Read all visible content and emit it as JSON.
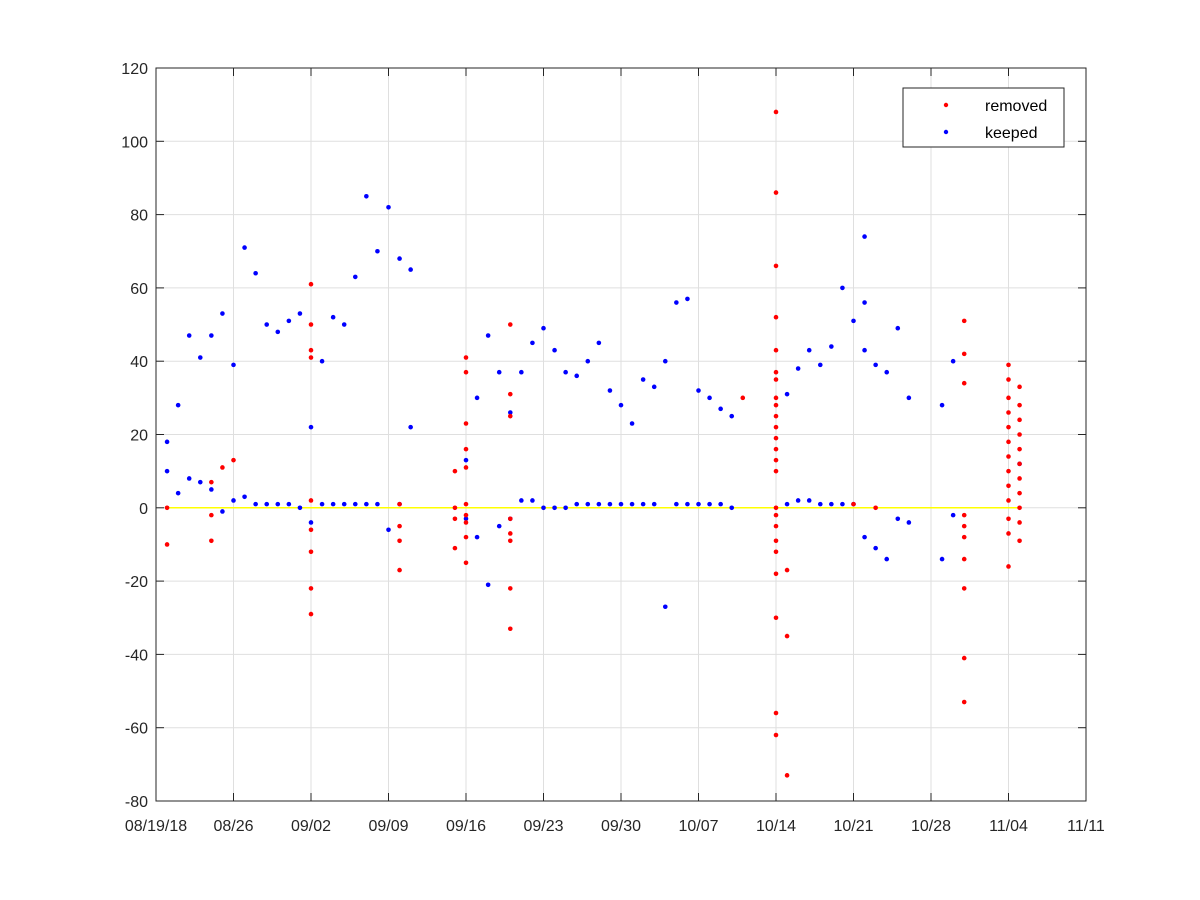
{
  "chart_data": {
    "type": "scatter",
    "title": "",
    "xlabel": "",
    "ylabel": "",
    "x_is_date": true,
    "xlim": [
      "2018-08-19",
      "2018-11-11"
    ],
    "ylim": [
      -80,
      120
    ],
    "x_ticks": [
      {
        "date": "2018-08-19",
        "label": "08/19/18"
      },
      {
        "date": "2018-08-26",
        "label": "08/26"
      },
      {
        "date": "2018-09-02",
        "label": "09/02"
      },
      {
        "date": "2018-09-09",
        "label": "09/09"
      },
      {
        "date": "2018-09-16",
        "label": "09/16"
      },
      {
        "date": "2018-09-23",
        "label": "09/23"
      },
      {
        "date": "2018-09-30",
        "label": "09/30"
      },
      {
        "date": "2018-10-07",
        "label": "10/07"
      },
      {
        "date": "2018-10-14",
        "label": "10/14"
      },
      {
        "date": "2018-10-21",
        "label": "10/21"
      },
      {
        "date": "2018-10-28",
        "label": "10/28"
      },
      {
        "date": "2018-11-04",
        "label": "11/04"
      },
      {
        "date": "2018-11-11",
        "label": "11/11"
      }
    ],
    "y_ticks": [
      -80,
      -60,
      -40,
      -20,
      0,
      20,
      40,
      60,
      80,
      100,
      120
    ],
    "grid": true,
    "legend_position": "top-right",
    "reference_line": {
      "y": 0,
      "color": "#ffff00"
    },
    "series": [
      {
        "name": "removed",
        "color": "#ff0000",
        "points": [
          [
            "2018-08-20",
            -10
          ],
          [
            "2018-08-20",
            0
          ],
          [
            "2018-08-24",
            7
          ],
          [
            "2018-08-24",
            -2
          ],
          [
            "2018-08-24",
            -9
          ],
          [
            "2018-08-25",
            11
          ],
          [
            "2018-08-26",
            13
          ],
          [
            "2018-09-02",
            61
          ],
          [
            "2018-09-02",
            50
          ],
          [
            "2018-09-02",
            43
          ],
          [
            "2018-09-02",
            41
          ],
          [
            "2018-09-02",
            2
          ],
          [
            "2018-09-02",
            -6
          ],
          [
            "2018-09-02",
            -12
          ],
          [
            "2018-09-02",
            -22
          ],
          [
            "2018-09-02",
            -29
          ],
          [
            "2018-09-10",
            -5
          ],
          [
            "2018-09-10",
            -9
          ],
          [
            "2018-09-10",
            -17
          ],
          [
            "2018-09-10",
            1
          ],
          [
            "2018-09-15",
            10
          ],
          [
            "2018-09-15",
            0
          ],
          [
            "2018-09-15",
            -3
          ],
          [
            "2018-09-15",
            -11
          ],
          [
            "2018-09-16",
            41
          ],
          [
            "2018-09-16",
            37
          ],
          [
            "2018-09-16",
            23
          ],
          [
            "2018-09-16",
            16
          ],
          [
            "2018-09-16",
            11
          ],
          [
            "2018-09-16",
            1
          ],
          [
            "2018-09-16",
            -2
          ],
          [
            "2018-09-16",
            -4
          ],
          [
            "2018-09-16",
            -8
          ],
          [
            "2018-09-16",
            -15
          ],
          [
            "2018-09-20",
            50
          ],
          [
            "2018-09-20",
            31
          ],
          [
            "2018-09-20",
            25
          ],
          [
            "2018-09-20",
            -3
          ],
          [
            "2018-09-20",
            -9
          ],
          [
            "2018-09-20",
            -22
          ],
          [
            "2018-09-20",
            -33
          ],
          [
            "2018-09-20",
            -7
          ],
          [
            "2018-10-11",
            30
          ],
          [
            "2018-10-14",
            108
          ],
          [
            "2018-10-14",
            86
          ],
          [
            "2018-10-14",
            66
          ],
          [
            "2018-10-14",
            52
          ],
          [
            "2018-10-14",
            43
          ],
          [
            "2018-10-14",
            37
          ],
          [
            "2018-10-14",
            35
          ],
          [
            "2018-10-14",
            30
          ],
          [
            "2018-10-14",
            28
          ],
          [
            "2018-10-14",
            25
          ],
          [
            "2018-10-14",
            22
          ],
          [
            "2018-10-14",
            19
          ],
          [
            "2018-10-14",
            16
          ],
          [
            "2018-10-14",
            13
          ],
          [
            "2018-10-14",
            10
          ],
          [
            "2018-10-14",
            0
          ],
          [
            "2018-10-14",
            -2
          ],
          [
            "2018-10-14",
            -5
          ],
          [
            "2018-10-14",
            -9
          ],
          [
            "2018-10-14",
            -12
          ],
          [
            "2018-10-14",
            -18
          ],
          [
            "2018-10-14",
            -30
          ],
          [
            "2018-10-14",
            -56
          ],
          [
            "2018-10-14",
            -62
          ],
          [
            "2018-10-15",
            -17
          ],
          [
            "2018-10-15",
            -35
          ],
          [
            "2018-10-15",
            -73
          ],
          [
            "2018-10-21",
            1
          ],
          [
            "2018-10-23",
            0
          ],
          [
            "2018-10-31",
            51
          ],
          [
            "2018-10-31",
            42
          ],
          [
            "2018-10-31",
            34
          ],
          [
            "2018-10-31",
            -2
          ],
          [
            "2018-10-31",
            -5
          ],
          [
            "2018-10-31",
            -8
          ],
          [
            "2018-10-31",
            -14
          ],
          [
            "2018-10-31",
            -22
          ],
          [
            "2018-10-31",
            -41
          ],
          [
            "2018-10-31",
            -53
          ],
          [
            "2018-11-04",
            39
          ],
          [
            "2018-11-04",
            35
          ],
          [
            "2018-11-04",
            30
          ],
          [
            "2018-11-04",
            26
          ],
          [
            "2018-11-04",
            22
          ],
          [
            "2018-11-04",
            18
          ],
          [
            "2018-11-04",
            14
          ],
          [
            "2018-11-04",
            10
          ],
          [
            "2018-11-04",
            6
          ],
          [
            "2018-11-04",
            2
          ],
          [
            "2018-11-04",
            -3
          ],
          [
            "2018-11-04",
            -7
          ],
          [
            "2018-11-04",
            -16
          ],
          [
            "2018-11-05",
            33
          ],
          [
            "2018-11-05",
            28
          ],
          [
            "2018-11-05",
            24
          ],
          [
            "2018-11-05",
            20
          ],
          [
            "2018-11-05",
            16
          ],
          [
            "2018-11-05",
            12
          ],
          [
            "2018-11-05",
            8
          ],
          [
            "2018-11-05",
            4
          ],
          [
            "2018-11-05",
            0
          ],
          [
            "2018-11-05",
            -4
          ],
          [
            "2018-11-05",
            -9
          ]
        ]
      },
      {
        "name": "keeped",
        "color": "#0000ff",
        "points": [
          [
            "2018-08-20",
            18
          ],
          [
            "2018-08-20",
            10
          ],
          [
            "2018-08-21",
            28
          ],
          [
            "2018-08-21",
            4
          ],
          [
            "2018-08-22",
            47
          ],
          [
            "2018-08-22",
            8
          ],
          [
            "2018-08-23",
            41
          ],
          [
            "2018-08-23",
            7
          ],
          [
            "2018-08-24",
            47
          ],
          [
            "2018-08-24",
            5
          ],
          [
            "2018-08-25",
            53
          ],
          [
            "2018-08-25",
            -1
          ],
          [
            "2018-08-26",
            39
          ],
          [
            "2018-08-26",
            2
          ],
          [
            "2018-08-27",
            71
          ],
          [
            "2018-08-27",
            3
          ],
          [
            "2018-08-28",
            64
          ],
          [
            "2018-08-28",
            1
          ],
          [
            "2018-08-29",
            50
          ],
          [
            "2018-08-29",
            1
          ],
          [
            "2018-08-30",
            48
          ],
          [
            "2018-08-30",
            1
          ],
          [
            "2018-08-31",
            51
          ],
          [
            "2018-08-31",
            1
          ],
          [
            "2018-09-01",
            53
          ],
          [
            "2018-09-01",
            0
          ],
          [
            "2018-09-02",
            22
          ],
          [
            "2018-09-02",
            -4
          ],
          [
            "2018-09-03",
            40
          ],
          [
            "2018-09-03",
            1
          ],
          [
            "2018-09-04",
            52
          ],
          [
            "2018-09-04",
            1
          ],
          [
            "2018-09-05",
            50
          ],
          [
            "2018-09-05",
            1
          ],
          [
            "2018-09-06",
            63
          ],
          [
            "2018-09-06",
            1
          ],
          [
            "2018-09-07",
            85
          ],
          [
            "2018-09-07",
            1
          ],
          [
            "2018-09-08",
            70
          ],
          [
            "2018-09-08",
            1
          ],
          [
            "2018-09-09",
            82
          ],
          [
            "2018-09-09",
            -6
          ],
          [
            "2018-09-10",
            68
          ],
          [
            "2018-09-10",
            1
          ],
          [
            "2018-09-11",
            65
          ],
          [
            "2018-09-11",
            22
          ],
          [
            "2018-09-16",
            13
          ],
          [
            "2018-09-16",
            -3
          ],
          [
            "2018-09-17",
            30
          ],
          [
            "2018-09-17",
            -8
          ],
          [
            "2018-09-18",
            47
          ],
          [
            "2018-09-18",
            -21
          ],
          [
            "2018-09-19",
            37
          ],
          [
            "2018-09-19",
            -5
          ],
          [
            "2018-09-20",
            26
          ],
          [
            "2018-09-20",
            -3
          ],
          [
            "2018-09-21",
            37
          ],
          [
            "2018-09-21",
            2
          ],
          [
            "2018-09-22",
            45
          ],
          [
            "2018-09-22",
            2
          ],
          [
            "2018-09-23",
            49
          ],
          [
            "2018-09-23",
            0
          ],
          [
            "2018-09-24",
            43
          ],
          [
            "2018-09-24",
            0
          ],
          [
            "2018-09-25",
            37
          ],
          [
            "2018-09-25",
            0
          ],
          [
            "2018-09-26",
            36
          ],
          [
            "2018-09-26",
            1
          ],
          [
            "2018-09-27",
            40
          ],
          [
            "2018-09-27",
            1
          ],
          [
            "2018-09-28",
            45
          ],
          [
            "2018-09-28",
            1
          ],
          [
            "2018-09-29",
            32
          ],
          [
            "2018-09-29",
            1
          ],
          [
            "2018-09-30",
            28
          ],
          [
            "2018-09-30",
            1
          ],
          [
            "2018-10-01",
            23
          ],
          [
            "2018-10-01",
            1
          ],
          [
            "2018-10-02",
            35
          ],
          [
            "2018-10-02",
            1
          ],
          [
            "2018-10-03",
            33
          ],
          [
            "2018-10-03",
            1
          ],
          [
            "2018-10-04",
            40
          ],
          [
            "2018-10-04",
            -27
          ],
          [
            "2018-10-05",
            56
          ],
          [
            "2018-10-05",
            1
          ],
          [
            "2018-10-06",
            57
          ],
          [
            "2018-10-06",
            1
          ],
          [
            "2018-10-07",
            32
          ],
          [
            "2018-10-07",
            1
          ],
          [
            "2018-10-08",
            30
          ],
          [
            "2018-10-08",
            1
          ],
          [
            "2018-10-09",
            27
          ],
          [
            "2018-10-09",
            1
          ],
          [
            "2018-10-10",
            25
          ],
          [
            "2018-10-10",
            0
          ],
          [
            "2018-10-15",
            31
          ],
          [
            "2018-10-15",
            1
          ],
          [
            "2018-10-16",
            38
          ],
          [
            "2018-10-16",
            2
          ],
          [
            "2018-10-17",
            43
          ],
          [
            "2018-10-17",
            2
          ],
          [
            "2018-10-18",
            39
          ],
          [
            "2018-10-18",
            1
          ],
          [
            "2018-10-19",
            44
          ],
          [
            "2018-10-19",
            1
          ],
          [
            "2018-10-20",
            60
          ],
          [
            "2018-10-20",
            1
          ],
          [
            "2018-10-21",
            51
          ],
          [
            "2018-10-21",
            1
          ],
          [
            "2018-10-22",
            74
          ],
          [
            "2018-10-22",
            56
          ],
          [
            "2018-10-22",
            43
          ],
          [
            "2018-10-22",
            -8
          ],
          [
            "2018-10-23",
            39
          ],
          [
            "2018-10-23",
            -11
          ],
          [
            "2018-10-24",
            37
          ],
          [
            "2018-10-24",
            -14
          ],
          [
            "2018-10-25",
            49
          ],
          [
            "2018-10-25",
            -3
          ],
          [
            "2018-10-26",
            30
          ],
          [
            "2018-10-26",
            -4
          ],
          [
            "2018-10-29",
            28
          ],
          [
            "2018-10-29",
            -14
          ],
          [
            "2018-10-30",
            40
          ],
          [
            "2018-10-30",
            -2
          ],
          [
            "2018-11-05",
            12
          ]
        ]
      }
    ]
  }
}
